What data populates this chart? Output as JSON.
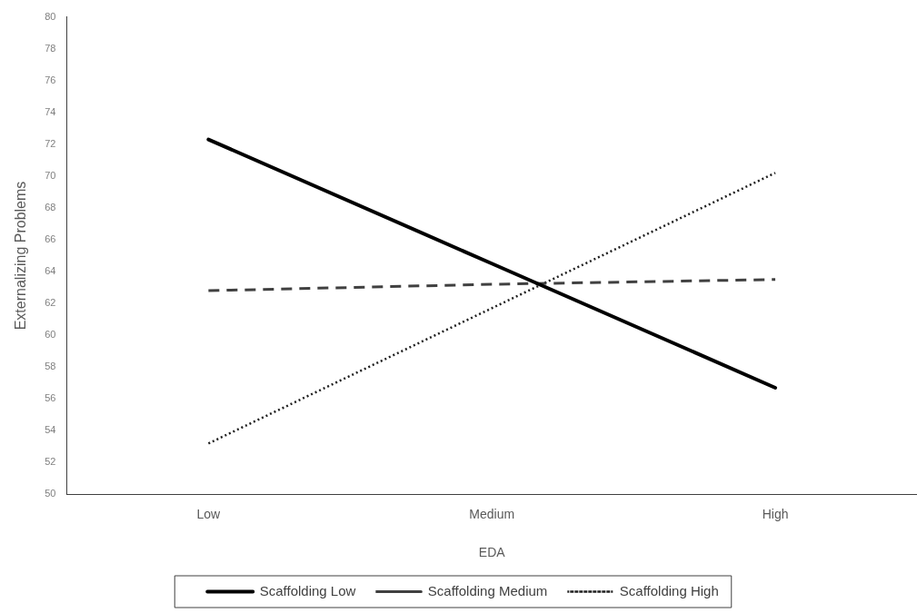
{
  "chart_data": {
    "type": "line",
    "xlabel": "EDA",
    "ylabel": "Externalizing Problems",
    "categories": [
      "Low",
      "Medium",
      "High"
    ],
    "series": [
      {
        "name": "Scaffolding Low",
        "color": "#000000",
        "line_style": "solid",
        "values": [
          72.3,
          64.5,
          56.7
        ]
      },
      {
        "name": "Scaffolding Medium",
        "color": "#404040",
        "line_style": "dashed",
        "values": [
          62.8,
          63.2,
          63.5
        ]
      },
      {
        "name": "Scaffolding High",
        "color": "#202020",
        "line_style": "dotted",
        "values": [
          53.2,
          61.7,
          70.2
        ]
      }
    ],
    "ylim": [
      50,
      80
    ],
    "yticks": [
      50,
      52,
      54,
      56,
      58,
      60,
      62,
      64,
      66,
      68,
      70,
      72,
      74,
      76,
      78,
      80
    ],
    "grid": false,
    "legend": "bottom",
    "marker": "none"
  }
}
